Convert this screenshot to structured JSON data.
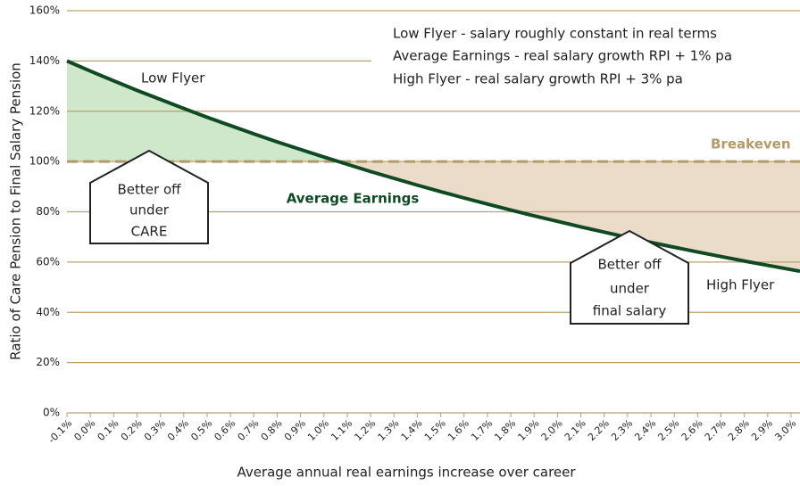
{
  "chart_data": {
    "type": "line",
    "y_label": "Ratio of Care Pension to Final Salary Pension",
    "x_label": "Average annual real earnings increase over career",
    "categories": [
      "-0.1%",
      "0.0%",
      "0.1%",
      "0.2%",
      "0.3%",
      "0.4%",
      "0.5%",
      "0.6%",
      "0.7%",
      "0.8%",
      "0.9%",
      "1.0%",
      "1.1%",
      "1.2%",
      "1.3%",
      "1.4%",
      "1.5%",
      "1.6%",
      "1.7%",
      "1.8%",
      "1.9%",
      "2.0%",
      "2.1%",
      "2.2%",
      "2.3%",
      "2.4%",
      "2.5%",
      "2.6%",
      "2.7%",
      "2.8%",
      "2.9%",
      "3.0%"
    ],
    "series": [
      {
        "name": "Average Earnings",
        "color": "#0f4a24",
        "values": [
          140,
          136.0,
          132.1,
          128.3,
          124.7,
          121.1,
          117.6,
          114.3,
          111.0,
          107.8,
          104.8,
          101.8,
          98.9,
          96.0,
          93.3,
          90.6,
          88.0,
          85.5,
          83.1,
          80.7,
          78.4,
          76.2,
          74.0,
          71.9,
          69.8,
          67.8,
          65.9,
          64.0,
          62.2,
          60.4,
          58.7,
          57.0
        ]
      }
    ],
    "ylim": [
      0,
      160
    ],
    "yticks": [
      {
        "value": 0,
        "label": "0%"
      },
      {
        "value": 20,
        "label": "20%"
      },
      {
        "value": 40,
        "label": "40%"
      },
      {
        "value": 60,
        "label": "60%"
      },
      {
        "value": 80,
        "label": "80%"
      },
      {
        "value": 100,
        "label": "100%"
      },
      {
        "value": 120,
        "label": "120%"
      },
      {
        "value": 140,
        "label": "140%"
      },
      {
        "value": 160,
        "label": "160%"
      }
    ],
    "grid": true,
    "grid_color": "#b9a06e",
    "breakeven": {
      "label": "Breakeven",
      "value": 100,
      "color": "#b39a6a"
    },
    "above_fill": "#cfe8cc",
    "below_fill": "#eadcc8",
    "legend_notes": [
      "Low Flyer - salary roughly constant in real terms",
      "Average Earnings - real salary growth RPI + 1% pa",
      "High Flyer - real salary growth RPI + 3% pa"
    ],
    "low_flyer": "Low Flyer",
    "high_flyer": "High Flyer",
    "care_box": [
      "Better off",
      "under",
      "CARE"
    ],
    "final_box": [
      "Better off",
      "under",
      "final salary"
    ]
  }
}
